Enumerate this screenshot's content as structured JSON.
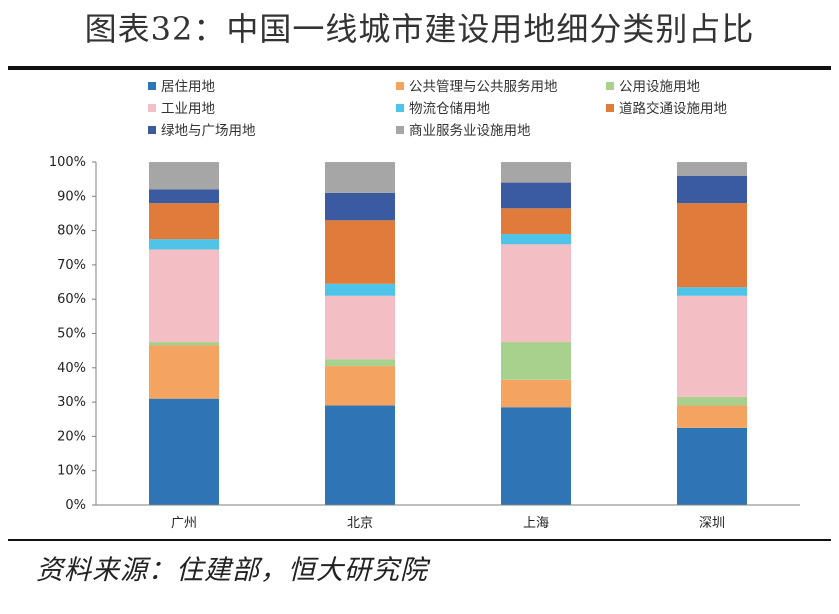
{
  "title": "图表32：中国一线城市建设用地细分类别占比",
  "source": "资料来源：住建部，恒大研究院",
  "chart_data": {
    "type": "bar",
    "stacked": true,
    "categories": [
      "广州",
      "北京",
      "上海",
      "深圳"
    ],
    "ylim": [
      0,
      100
    ],
    "yticks": [
      "0%",
      "10%",
      "20%",
      "30%",
      "40%",
      "50%",
      "60%",
      "70%",
      "80%",
      "90%",
      "100%"
    ],
    "grid": false,
    "legend_position": "top",
    "series": [
      {
        "name": "居住用地",
        "color": "#2E75B6",
        "values": [
          31,
          29,
          28.5,
          22.5
        ]
      },
      {
        "name": "公共管理与公共服务用地",
        "color": "#F4A460",
        "values": [
          15.5,
          11.5,
          8,
          6.5
        ]
      },
      {
        "name": "公用设施用地",
        "color": "#A9D18E",
        "values": [
          1,
          2,
          11,
          2.5
        ]
      },
      {
        "name": "工业用地",
        "color": "#F4BFC4",
        "values": [
          27,
          18.5,
          28.5,
          29.5
        ]
      },
      {
        "name": "物流仓储用地",
        "color": "#4FC3E8",
        "values": [
          3,
          3.5,
          3,
          2.5
        ]
      },
      {
        "name": "道路交通设施用地",
        "color": "#E07B39",
        "values": [
          10.5,
          18.5,
          7.5,
          24.5
        ]
      },
      {
        "name": "绿地与广场用地",
        "color": "#3A5BA0",
        "values": [
          4,
          8,
          7.5,
          8
        ]
      },
      {
        "name": "商业服务业设施用地",
        "color": "#A6A6A6",
        "values": [
          8,
          9,
          6,
          4
        ]
      }
    ]
  }
}
